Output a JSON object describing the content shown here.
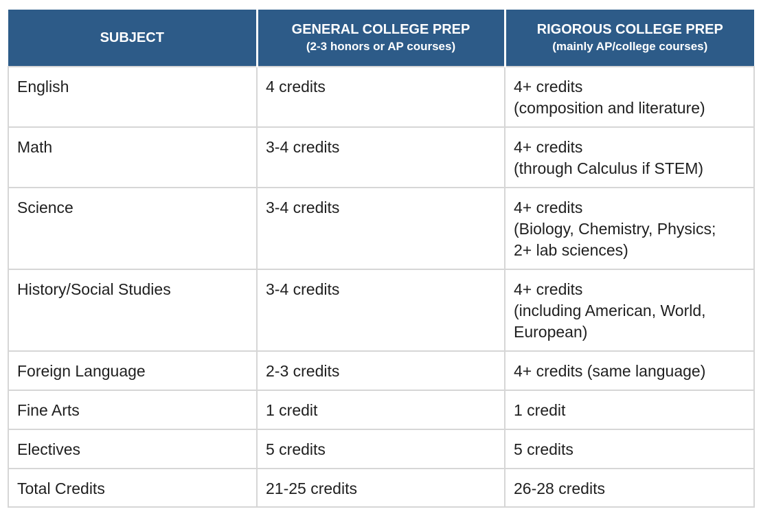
{
  "header": {
    "col1_title": "SUBJECT",
    "col2_title": "GENERAL COLLEGE PREP",
    "col2_subtitle": "(2-3 honors or AP courses)",
    "col3_title": "RIGOROUS COLLEGE PREP",
    "col3_subtitle": "(mainly AP/college courses)"
  },
  "rows": [
    {
      "subject": "English",
      "general": "4 credits",
      "rigorous": [
        "4+ credits",
        "(composition and literature)"
      ]
    },
    {
      "subject": "Math",
      "general": "3-4 credits",
      "rigorous": [
        "4+ credits",
        "(through Calculus if STEM)"
      ]
    },
    {
      "subject": "Science",
      "general": "3-4 credits",
      "rigorous": [
        "4+ credits",
        "(Biology, Chemistry, Physics;",
        "2+ lab sciences)"
      ]
    },
    {
      "subject": "History/Social Studies",
      "general": "3-4 credits",
      "rigorous": [
        "4+ credits",
        "(including American, World,",
        "European)"
      ]
    },
    {
      "subject": "Foreign Language",
      "general": "2-3 credits",
      "rigorous": [
        "4+ credits (same language)"
      ]
    },
    {
      "subject": "Fine Arts",
      "general": "1 credit",
      "rigorous": [
        "1 credit"
      ]
    },
    {
      "subject": "Electives",
      "general": "5 credits",
      "rigorous": [
        "5 credits"
      ]
    },
    {
      "subject": "Total Credits",
      "general": "21-25 credits",
      "rigorous": [
        "26-28 credits"
      ]
    }
  ],
  "colors": {
    "header_bg": "#2d5b88",
    "header_text": "#ffffff",
    "grid": "#d6d6d6",
    "body_text": "#1f1f1f"
  }
}
